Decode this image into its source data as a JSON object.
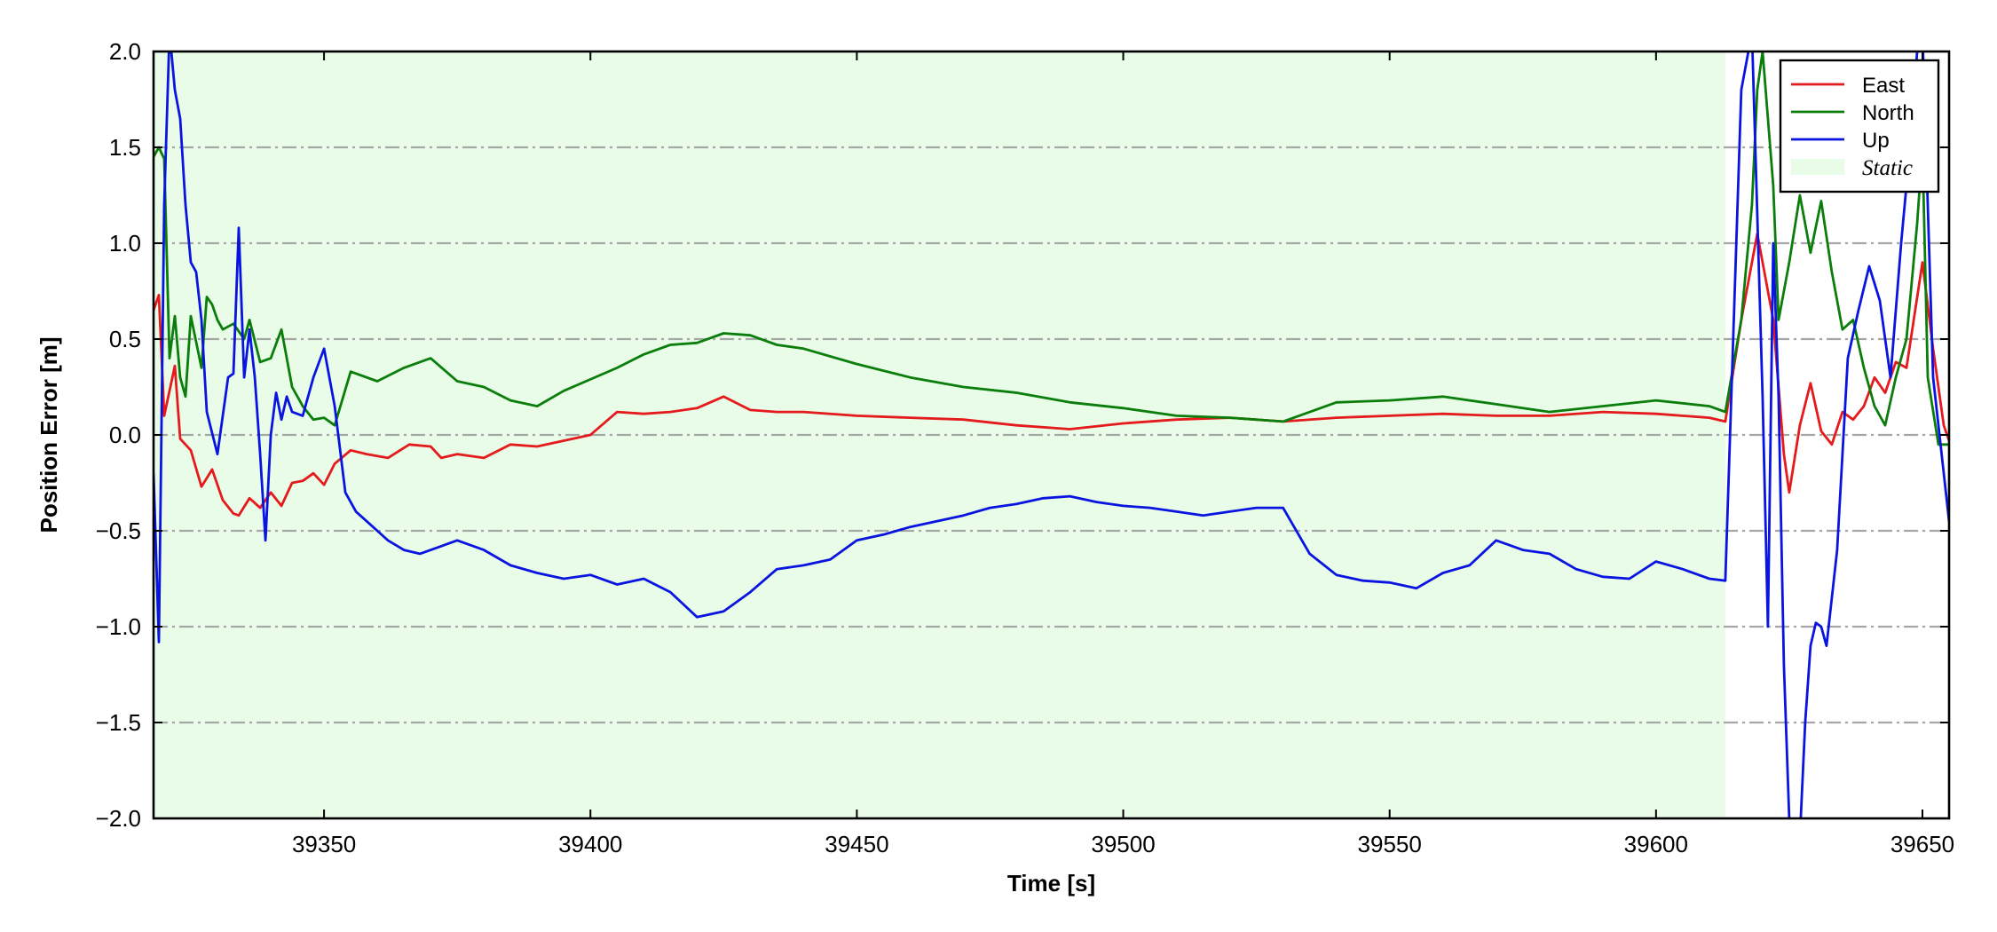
{
  "chart_data": {
    "type": "line",
    "xlabel": "Time [s]",
    "ylabel": "Position Error [m]",
    "xlim": [
      39318,
      39655
    ],
    "ylim": [
      -2.0,
      2.0
    ],
    "xticks": [
      39350,
      39400,
      39450,
      39500,
      39550,
      39600,
      39650
    ],
    "xtick_labels": [
      "39350",
      "39400",
      "39450",
      "39500",
      "39550",
      "39600",
      "39650"
    ],
    "yticks": [
      -2.0,
      -1.5,
      -1.0,
      -0.5,
      0.0,
      0.5,
      1.0,
      1.5,
      2.0
    ],
    "ytick_labels": [
      "−2.0",
      "−1.5",
      "−1.0",
      "−0.5",
      "0.0",
      "0.5",
      "1.0",
      "1.5",
      "2.0"
    ],
    "grid": "horizontal dash-dot",
    "legend_position": "top-right",
    "shaded_region": {
      "label": "Static",
      "x": [
        39318,
        39613
      ],
      "color": "#e8fce8"
    },
    "series": [
      {
        "name": "East",
        "color": "#e41a1c",
        "x": [
          39318,
          39319,
          39320,
          39322,
          39323,
          39325,
          39327,
          39329,
          39331,
          39333,
          39334,
          39336,
          39338,
          39340,
          39342,
          39344,
          39346,
          39348,
          39350,
          39352,
          39355,
          39358,
          39362,
          39366,
          39370,
          39372,
          39375,
          39380,
          39385,
          39390,
          39395,
          39400,
          39405,
          39410,
          39415,
          39420,
          39425,
          39430,
          39435,
          39440,
          39450,
          39460,
          39470,
          39480,
          39490,
          39500,
          39510,
          39520,
          39530,
          39540,
          39550,
          39560,
          39570,
          39580,
          39590,
          39600,
          39610,
          39613,
          39616,
          39619,
          39622,
          39624,
          39625,
          39627,
          39629,
          39631,
          39633,
          39635,
          39637,
          39639,
          39641,
          39643,
          39645,
          39647,
          39650,
          39652,
          39654,
          39655
        ],
        "values": [
          0.65,
          0.73,
          0.1,
          0.36,
          -0.02,
          -0.08,
          -0.27,
          -0.18,
          -0.34,
          -0.41,
          -0.42,
          -0.33,
          -0.38,
          -0.3,
          -0.37,
          -0.25,
          -0.24,
          -0.2,
          -0.26,
          -0.15,
          -0.08,
          -0.1,
          -0.12,
          -0.05,
          -0.06,
          -0.12,
          -0.1,
          -0.12,
          -0.05,
          -0.06,
          -0.03,
          0.0,
          0.12,
          0.11,
          0.12,
          0.14,
          0.2,
          0.13,
          0.12,
          0.12,
          0.1,
          0.09,
          0.08,
          0.05,
          0.03,
          0.06,
          0.08,
          0.09,
          0.07,
          0.09,
          0.1,
          0.11,
          0.1,
          0.1,
          0.12,
          0.11,
          0.09,
          0.07,
          0.6,
          1.05,
          0.6,
          -0.1,
          -0.3,
          0.05,
          0.27,
          0.02,
          -0.05,
          0.12,
          0.08,
          0.15,
          0.3,
          0.22,
          0.38,
          0.35,
          0.9,
          0.45,
          0.05,
          -0.03
        ]
      },
      {
        "name": "North",
        "color": "#0b7d0b",
        "x": [
          39318,
          39319,
          39320,
          39321,
          39322,
          39323,
          39324,
          39325,
          39327,
          39328,
          39329,
          39330,
          39331,
          39333,
          39335,
          39336,
          39338,
          39340,
          39342,
          39344,
          39346,
          39348,
          39350,
          39352,
          39355,
          39360,
          39365,
          39370,
          39375,
          39380,
          39385,
          39390,
          39395,
          39400,
          39405,
          39410,
          39415,
          39420,
          39425,
          39430,
          39435,
          39440,
          39450,
          39460,
          39470,
          39480,
          39490,
          39500,
          39510,
          39520,
          39530,
          39540,
          39550,
          39560,
          39570,
          39580,
          39590,
          39600,
          39610,
          39613,
          39616,
          39618,
          39619,
          39620,
          39622,
          39623,
          39625,
          39627,
          39629,
          39631,
          39633,
          39635,
          39637,
          39639,
          39641,
          39643,
          39645,
          39647,
          39649,
          39650,
          39651,
          39653,
          39655
        ],
        "values": [
          1.45,
          1.5,
          1.44,
          0.4,
          0.62,
          0.3,
          0.2,
          0.62,
          0.35,
          0.72,
          0.68,
          0.6,
          0.55,
          0.58,
          0.5,
          0.6,
          0.38,
          0.4,
          0.55,
          0.25,
          0.15,
          0.08,
          0.09,
          0.05,
          0.33,
          0.28,
          0.35,
          0.4,
          0.28,
          0.25,
          0.18,
          0.15,
          0.23,
          0.29,
          0.35,
          0.42,
          0.47,
          0.48,
          0.53,
          0.52,
          0.47,
          0.45,
          0.37,
          0.3,
          0.25,
          0.22,
          0.17,
          0.14,
          0.1,
          0.09,
          0.07,
          0.17,
          0.18,
          0.2,
          0.16,
          0.12,
          0.15,
          0.18,
          0.15,
          0.12,
          0.6,
          1.2,
          1.8,
          2.0,
          1.3,
          0.6,
          0.9,
          1.25,
          0.95,
          1.22,
          0.85,
          0.55,
          0.6,
          0.35,
          0.15,
          0.05,
          0.3,
          0.5,
          1.1,
          1.5,
          0.3,
          -0.05,
          -0.05
        ]
      },
      {
        "name": "Up",
        "color": "#0a14e0",
        "x": [
          39318,
          39319,
          39320,
          39321,
          39322,
          39323,
          39324,
          39325,
          39326,
          39327,
          39328,
          39330,
          39332,
          39333,
          39334,
          39335,
          39336,
          39337,
          39338,
          39339,
          39340,
          39341,
          39342,
          39343,
          39344,
          39346,
          39348,
          39350,
          39352,
          39354,
          39356,
          39358,
          39360,
          39362,
          39365,
          39368,
          39372,
          39375,
          39380,
          39385,
          39390,
          39395,
          39400,
          39405,
          39410,
          39415,
          39420,
          39425,
          39430,
          39435,
          39440,
          39445,
          39450,
          39455,
          39460,
          39465,
          39470,
          39475,
          39480,
          39485,
          39490,
          39495,
          39500,
          39505,
          39510,
          39515,
          39520,
          39525,
          39530,
          39535,
          39540,
          39545,
          39550,
          39555,
          39560,
          39565,
          39570,
          39575,
          39580,
          39585,
          39590,
          39595,
          39600,
          39605,
          39610,
          39613,
          39616,
          39618,
          39620,
          39621,
          39622,
          39623,
          39624,
          39625,
          39626,
          39627,
          39628,
          39629,
          39630,
          39631,
          39632,
          39634,
          39636,
          39638,
          39640,
          39642,
          39644,
          39646,
          39648,
          39649,
          39650,
          39652,
          39654,
          39655
        ],
        "values": [
          -0.2,
          -1.08,
          1.2,
          2.1,
          1.8,
          1.65,
          1.2,
          0.9,
          0.85,
          0.6,
          0.12,
          -0.1,
          0.3,
          0.32,
          1.08,
          0.3,
          0.55,
          0.3,
          -0.1,
          -0.55,
          0.0,
          0.22,
          0.08,
          0.2,
          0.12,
          0.1,
          0.3,
          0.45,
          0.15,
          -0.3,
          -0.4,
          -0.45,
          -0.5,
          -0.55,
          -0.6,
          -0.62,
          -0.58,
          -0.55,
          -0.6,
          -0.68,
          -0.72,
          -0.75,
          -0.73,
          -0.78,
          -0.75,
          -0.82,
          -0.95,
          -0.92,
          -0.82,
          -0.7,
          -0.68,
          -0.65,
          -0.55,
          -0.52,
          -0.48,
          -0.45,
          -0.42,
          -0.38,
          -0.36,
          -0.33,
          -0.32,
          -0.35,
          -0.37,
          -0.38,
          -0.4,
          -0.42,
          -0.4,
          -0.38,
          -0.38,
          -0.62,
          -0.73,
          -0.76,
          -0.77,
          -0.8,
          -0.72,
          -0.68,
          -0.55,
          -0.6,
          -0.62,
          -0.7,
          -0.74,
          -0.75,
          -0.66,
          -0.7,
          -0.75,
          -0.76,
          1.8,
          2.1,
          0.2,
          -1.0,
          1.0,
          0.2,
          -1.2,
          -2.0,
          -2.2,
          -2.1,
          -1.5,
          -1.1,
          -0.98,
          -1.0,
          -1.1,
          -0.6,
          0.4,
          0.65,
          0.88,
          0.7,
          0.3,
          1.0,
          1.6,
          2.0,
          2.1,
          0.3,
          -0.2,
          -0.45
        ]
      }
    ]
  }
}
